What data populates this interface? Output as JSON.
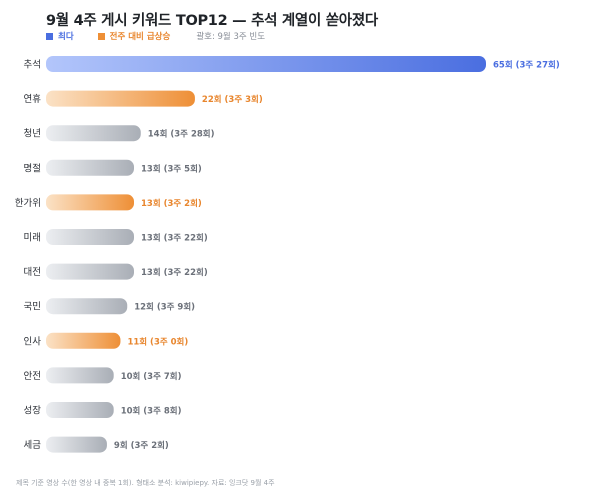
{
  "title": "9월 4주 게시 키워드 TOP12 — 추석 계열이 쏟아졌다",
  "legend": {
    "max_label": "최다",
    "surge_label": "전주 대비 급상승",
    "note": "괄호: 9월 3주 빈도"
  },
  "footer": "제목 기준 영상 수(한 영상 내 중복 1회). 형태소 분석: kiwipiepy. 자료: 잉크닷 9월 4주",
  "colors": {
    "max_start": "#b3c6fb",
    "max_end": "#4a6ee0",
    "surge_start": "#fbe2c6",
    "surge_end": "#ee8f36",
    "normal_start": "#eceef1",
    "normal_end": "#a9aeb6",
    "max_text": "#4a6ee0",
    "surge_text": "#e8862e",
    "normal_text": "#6b7079"
  },
  "chart_data": {
    "type": "bar",
    "orientation": "horizontal",
    "categories": [
      "추석",
      "연휴",
      "청년",
      "명절",
      "한가위",
      "미래",
      "대전",
      "국민",
      "인사",
      "안전",
      "성장",
      "세금"
    ],
    "values": [
      65,
      22,
      14,
      13,
      13,
      13,
      13,
      12,
      11,
      10,
      10,
      9
    ],
    "prev_week": [
      27,
      3,
      28,
      5,
      2,
      22,
      22,
      9,
      0,
      7,
      8,
      2
    ],
    "highlight": [
      "max",
      "surge",
      "normal",
      "normal",
      "surge",
      "normal",
      "normal",
      "normal",
      "surge",
      "normal",
      "normal",
      "normal"
    ],
    "value_labels": [
      "65회 (3주 27회)",
      "22회 (3주 3회)",
      "14회 (3주 28회)",
      "13회 (3주 5회)",
      "13회 (3주 2회)",
      "13회 (3주 22회)",
      "13회 (3주 22회)",
      "12회 (3주 9회)",
      "11회 (3주 0회)",
      "10회 (3주 7회)",
      "10회 (3주 8회)",
      "9회 (3주 2회)"
    ]
  }
}
